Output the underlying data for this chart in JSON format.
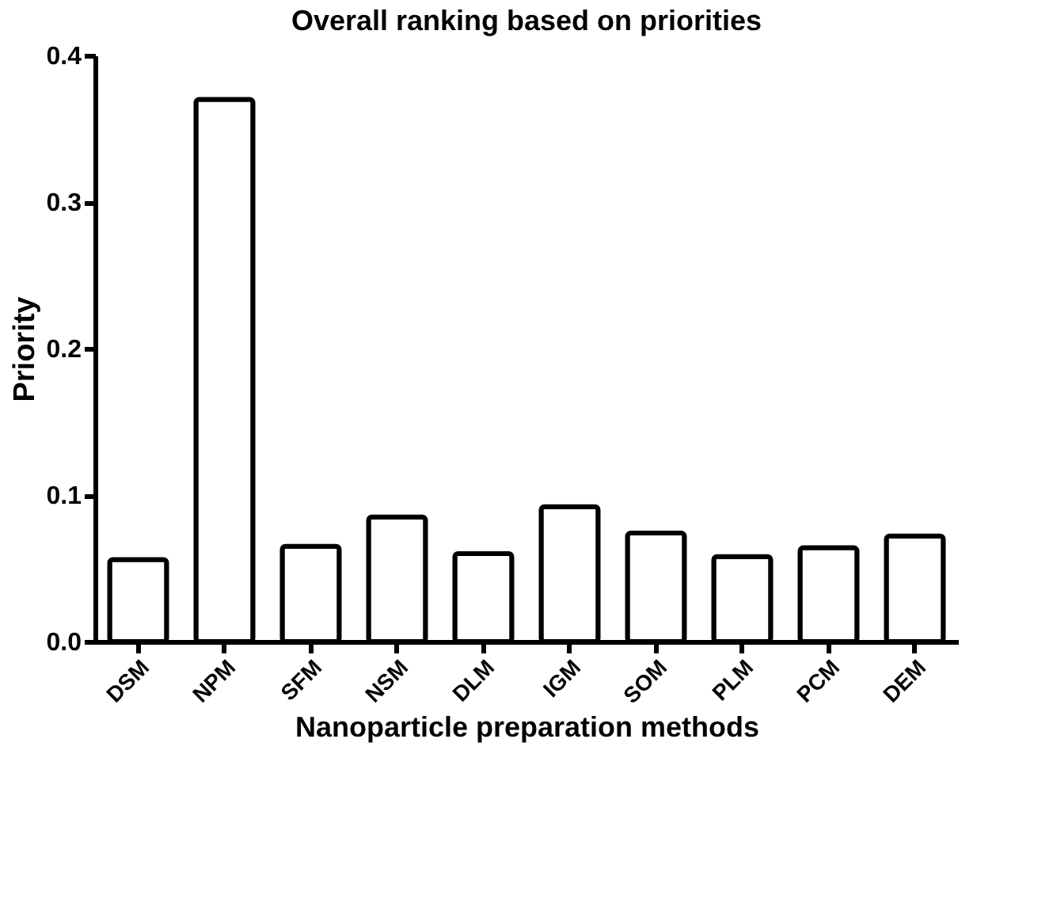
{
  "chart_data": {
    "type": "bar",
    "title": "Overall ranking based on priorities",
    "xlabel": "Nanoparticle preparation methods",
    "ylabel": "Priority",
    "categories": [
      "DSM",
      "NPM",
      "SFM",
      "NSM",
      "DLM",
      "IGM",
      "SOM",
      "PLM",
      "PCM",
      "DEM"
    ],
    "values": [
      0.056,
      0.37,
      0.065,
      0.085,
      0.06,
      0.092,
      0.074,
      0.058,
      0.064,
      0.072
    ],
    "color": "#ffffff",
    "ylim": [
      0,
      0.4
    ],
    "yticks": [
      {
        "value": 0,
        "label": "0.0"
      },
      {
        "value": 0.1,
        "label": "0.1"
      },
      {
        "value": 0.2,
        "label": "0.2"
      },
      {
        "value": 0.3,
        "label": "0.3"
      },
      {
        "value": 0.4,
        "label": "0.4"
      }
    ],
    "grid": false
  }
}
